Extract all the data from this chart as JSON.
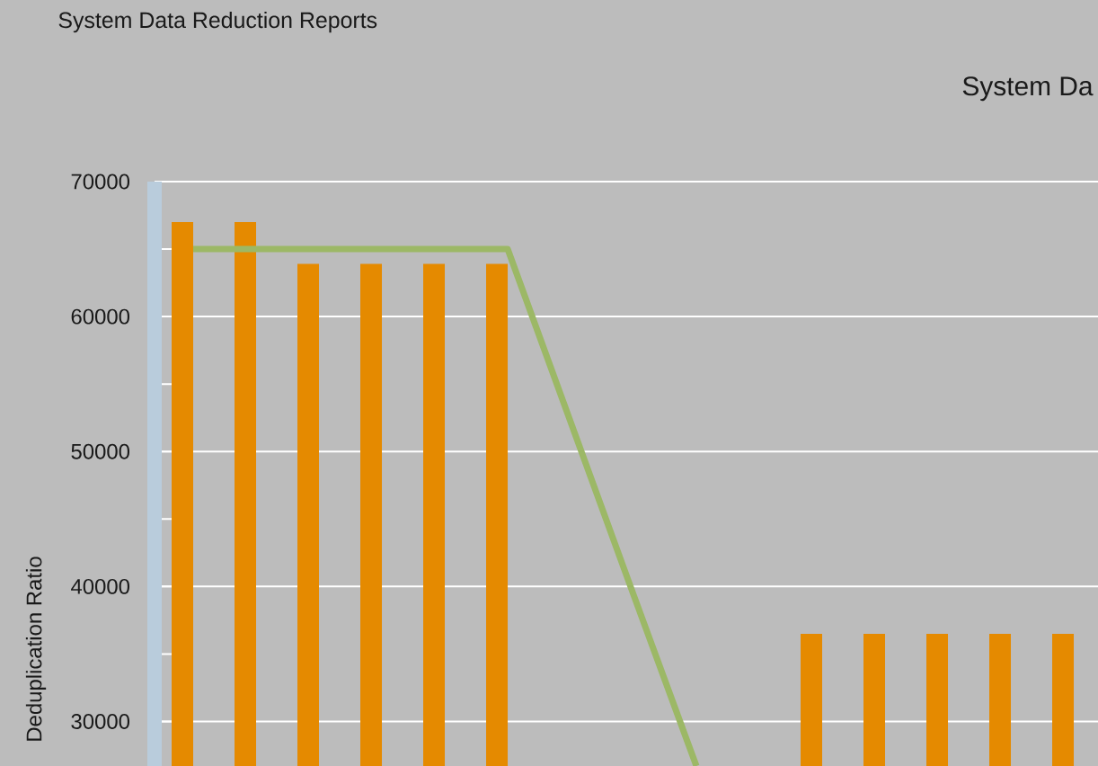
{
  "chart_data": {
    "type": "bar",
    "title": "System Da",
    "ylabel": "Deduplication Ratio",
    "annotations": [
      "System Data Reduction Reports"
    ],
    "categories": [
      null,
      null,
      null,
      null,
      null,
      null,
      null,
      null,
      null,
      null,
      null,
      null,
      null,
      null,
      null
    ],
    "series": [
      {
        "color": "#e58a00",
        "values": [
          67000,
          67000,
          63900,
          63900,
          63900,
          63900,
          null,
          null,
          null,
          null,
          36500,
          36500,
          36500,
          36500,
          36500
        ]
      },
      {
        "type": "line",
        "color": "#9cb866",
        "values": [
          65000,
          65000,
          65000,
          65000,
          65000,
          65000,
          52200,
          39400,
          26700,
          null,
          null,
          null,
          null,
          null,
          null
        ]
      }
    ],
    "ylim": [
      26700,
      70000
    ],
    "yticks": [
      30000,
      {
        "value": 35000,
        "label": null
      },
      40000,
      {
        "value": 45000,
        "label": null
      },
      50000,
      {
        "value": 55000,
        "label": null
      },
      60000,
      {
        "value": 65000,
        "label": null
      },
      70000
    ],
    "grid": "y",
    "tick_labels": "y"
  }
}
